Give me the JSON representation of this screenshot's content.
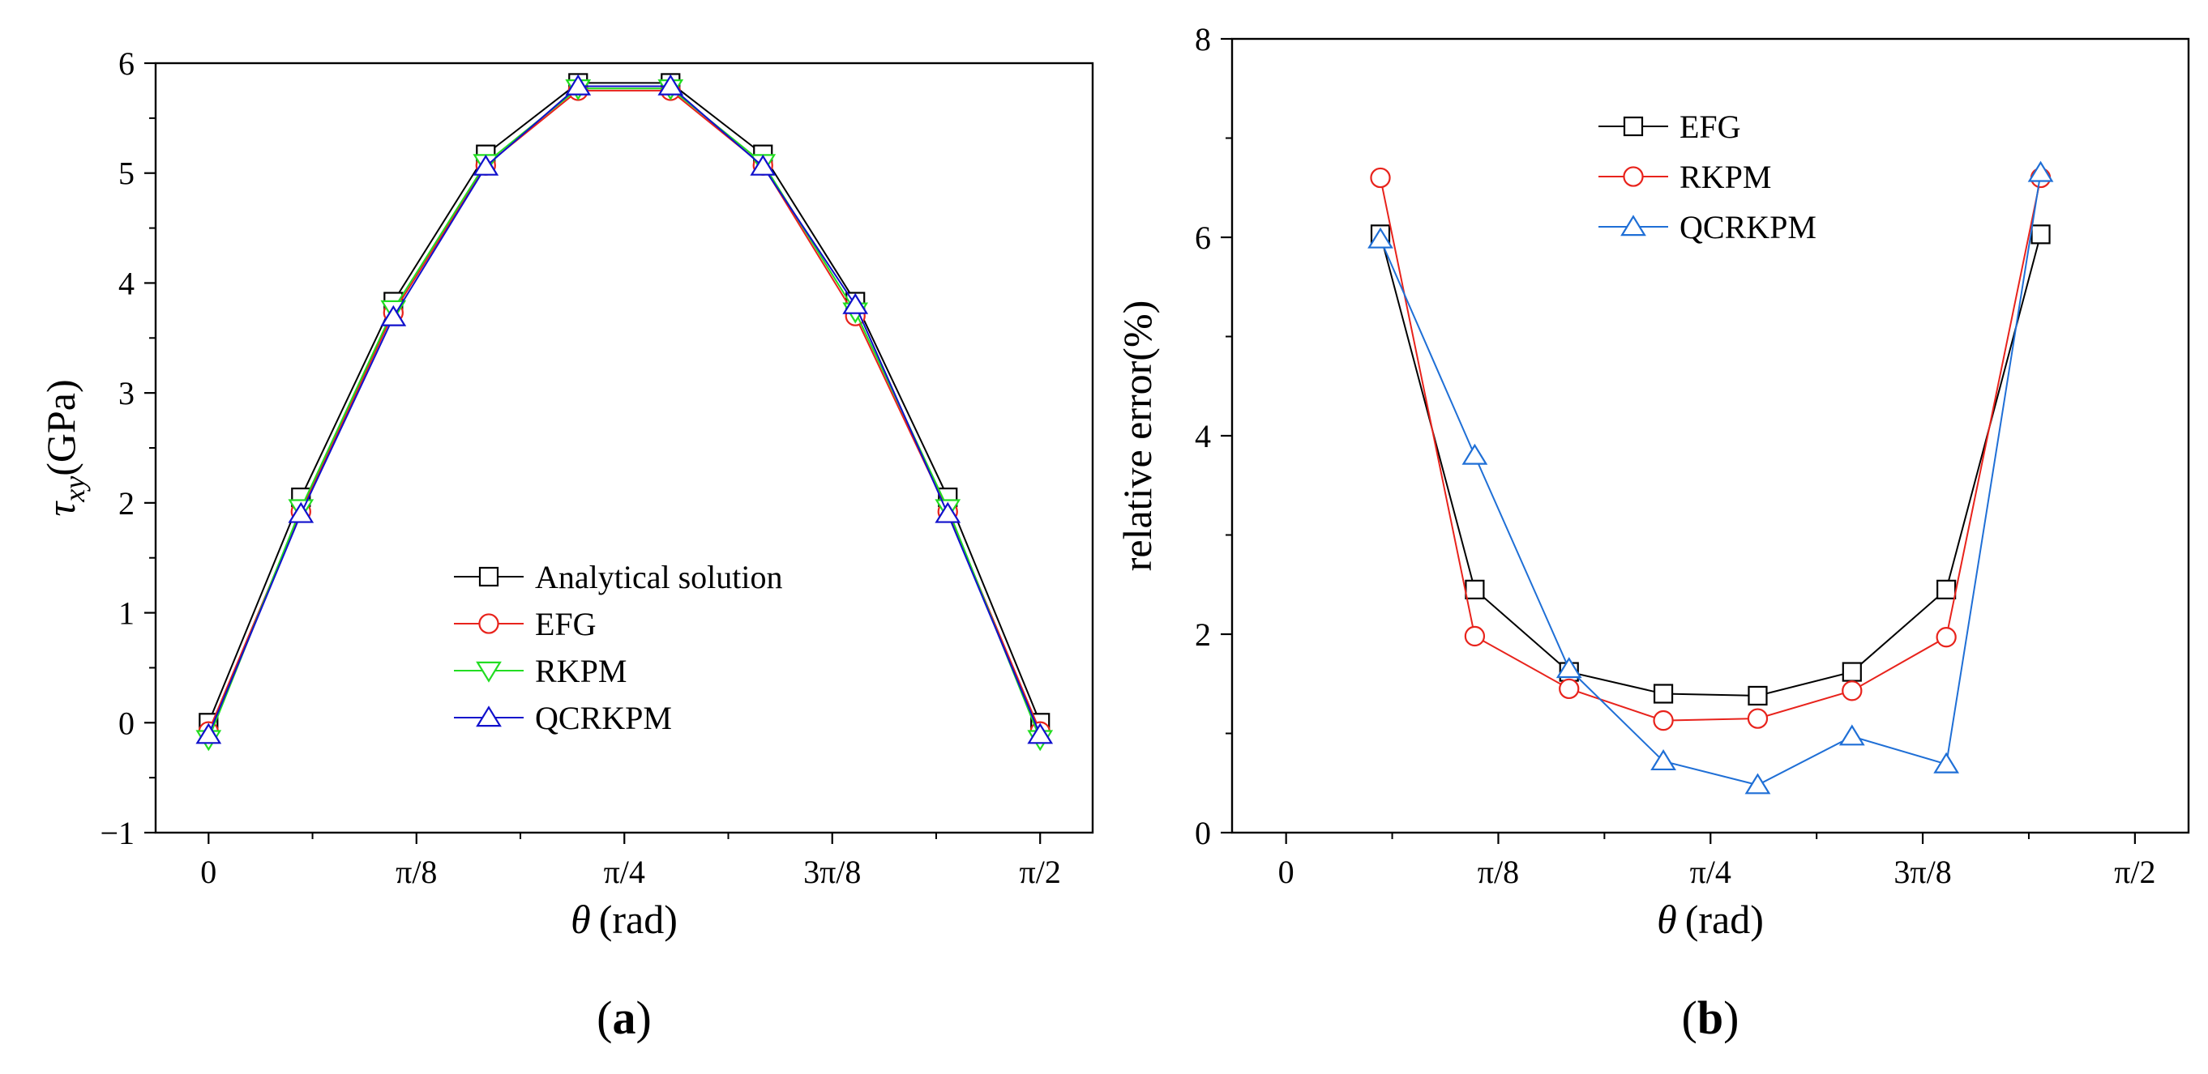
{
  "chart_data": [
    {
      "panel_label": "(a)",
      "type": "line",
      "title": "",
      "xlabel_symbol": "θ",
      "xlabel_unit": "(rad)",
      "ylabel_symbol": "τ",
      "ylabel_sub": "xy",
      "ylabel_unit": "(GPa)",
      "xlim": [
        -0.1,
        1.67
      ],
      "ylim": [
        -1,
        6
      ],
      "xticks": [
        {
          "value": 0,
          "label": "0"
        },
        {
          "value": 0.3927,
          "label": "π/8"
        },
        {
          "value": 0.7854,
          "label": "π/4"
        },
        {
          "value": 1.1781,
          "label": "3π/8"
        },
        {
          "value": 1.5708,
          "label": "π/2"
        }
      ],
      "yticks": [
        {
          "value": -1,
          "label": "−1"
        },
        {
          "value": 0,
          "label": "0"
        },
        {
          "value": 1,
          "label": "1"
        },
        {
          "value": 2,
          "label": "2"
        },
        {
          "value": 3,
          "label": "3"
        },
        {
          "value": 4,
          "label": "4"
        },
        {
          "value": 5,
          "label": "5"
        },
        {
          "value": 6,
          "label": "6"
        }
      ],
      "legend_position": "lower-right",
      "x": [
        0,
        0.1745,
        0.3491,
        0.5236,
        0.6981,
        0.8727,
        1.0472,
        1.2217,
        1.3963,
        1.5708
      ],
      "series": [
        {
          "name": "Analytical solution",
          "color": "#000000",
          "marker": "square",
          "values": [
            0.0,
            2.05,
            3.83,
            5.17,
            5.82,
            5.82,
            5.17,
            3.83,
            2.05,
            0.0
          ]
        },
        {
          "name": "EFG",
          "color": "#e8231c",
          "marker": "circle",
          "values": [
            -0.08,
            1.92,
            3.73,
            5.07,
            5.75,
            5.75,
            5.07,
            3.7,
            1.92,
            -0.08
          ]
        },
        {
          "name": "RKPM",
          "color": "#22dd22",
          "marker": "triangle-down",
          "values": [
            -0.15,
            1.95,
            3.76,
            5.09,
            5.77,
            5.77,
            5.09,
            3.74,
            1.95,
            -0.15
          ]
        },
        {
          "name": "QCRKPM",
          "color": "#1010cc",
          "marker": "triangle-up",
          "values": [
            -0.11,
            1.9,
            3.69,
            5.06,
            5.79,
            5.79,
            5.06,
            3.8,
            1.9,
            -0.11
          ]
        }
      ]
    },
    {
      "panel_label": "(b)",
      "type": "line",
      "title": "",
      "xlabel_symbol": "θ",
      "xlabel_unit": "(rad)",
      "ylabel": "relative error(%)",
      "xlim": [
        -0.1,
        1.67
      ],
      "ylim": [
        0,
        8
      ],
      "xticks": [
        {
          "value": 0,
          "label": "0"
        },
        {
          "value": 0.3927,
          "label": "π/8"
        },
        {
          "value": 0.7854,
          "label": "π/4"
        },
        {
          "value": 1.1781,
          "label": "3π/8"
        },
        {
          "value": 1.5708,
          "label": "π/2"
        }
      ],
      "yticks": [
        {
          "value": 0,
          "label": "0"
        },
        {
          "value": 2,
          "label": "2"
        },
        {
          "value": 4,
          "label": "4"
        },
        {
          "value": 6,
          "label": "6"
        },
        {
          "value": 8,
          "label": "8"
        }
      ],
      "legend_position": "top-center",
      "x": [
        0.1745,
        0.3491,
        0.5236,
        0.6981,
        0.8727,
        1.0472,
        1.2217,
        1.3963
      ],
      "series": [
        {
          "name": "EFG",
          "color": "#000000",
          "marker": "square",
          "values": [
            6.03,
            2.45,
            1.62,
            1.4,
            1.38,
            1.62,
            2.45,
            6.03
          ]
        },
        {
          "name": "RKPM",
          "color": "#e8231c",
          "marker": "circle",
          "values": [
            6.6,
            1.98,
            1.45,
            1.13,
            1.15,
            1.43,
            1.97,
            6.6
          ]
        },
        {
          "name": "QCRKPM",
          "color": "#1f6fd6",
          "marker": "triangle-up",
          "values": [
            5.98,
            3.8,
            1.65,
            0.72,
            0.48,
            0.97,
            0.69,
            6.65
          ]
        }
      ]
    }
  ]
}
